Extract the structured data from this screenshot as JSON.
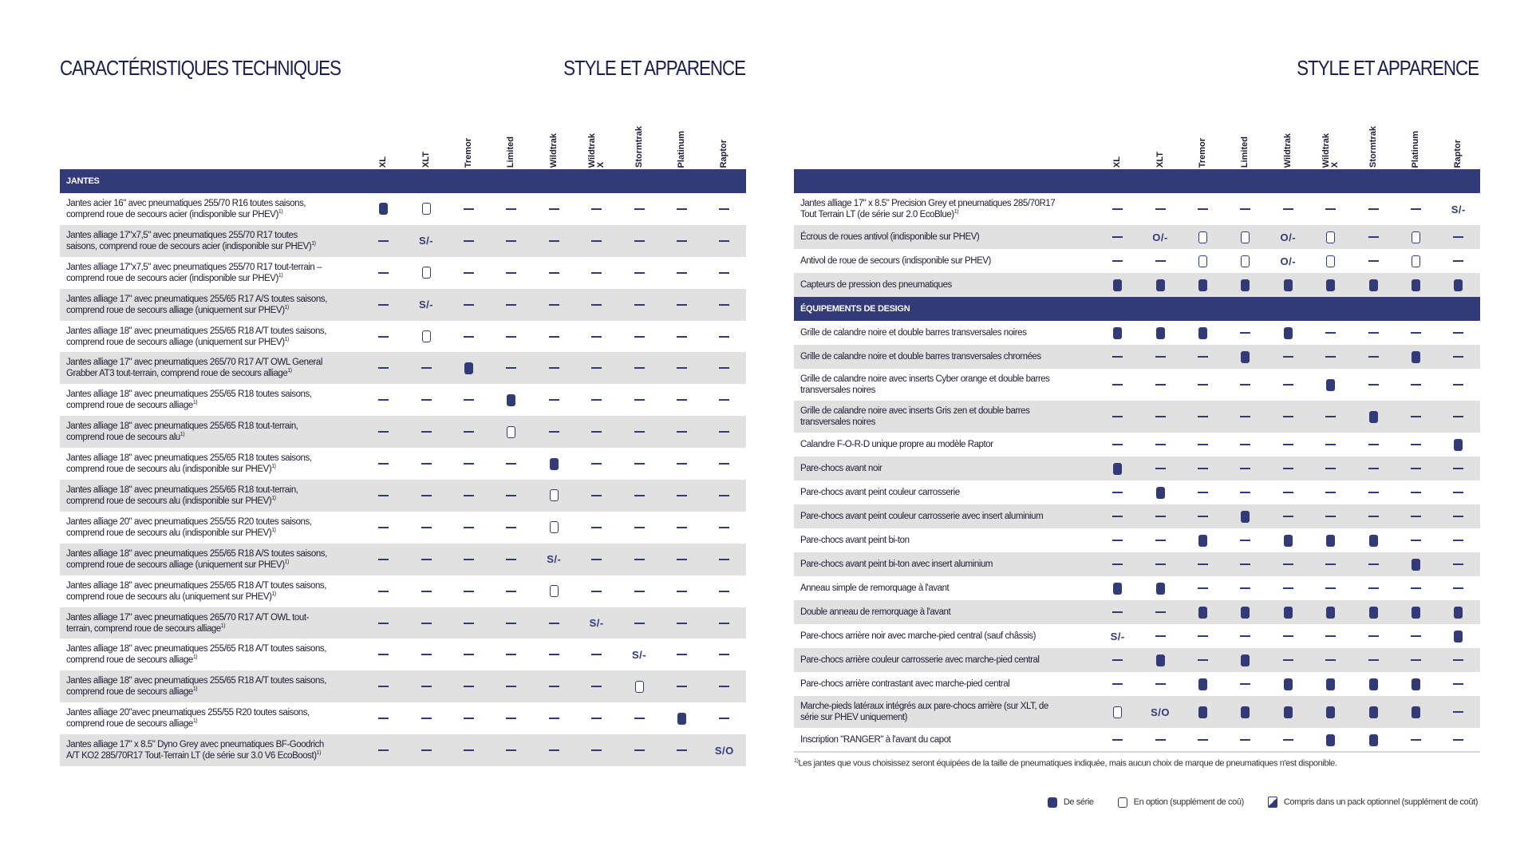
{
  "colors": {
    "navy": "#323a78",
    "row_grey": "#e1e1e2"
  },
  "titles": {
    "left": "CARACTÉRISTIQUES TECHNIQUES",
    "center": "STYLE ET APPARENCE",
    "right": "STYLE ET APPARENCE"
  },
  "columns": [
    [
      "XL"
    ],
    [
      "XLT"
    ],
    [
      "Tremor"
    ],
    [
      "Limited"
    ],
    [
      "Wildtrak"
    ],
    [
      "Wildtrak",
      "X"
    ],
    [
      "Stormtrak"
    ],
    [
      "Platinum"
    ],
    [
      "Raptor"
    ]
  ],
  "left_table": {
    "sections": [
      {
        "title": "JANTES",
        "rows": [
          {
            "label": "Jantes acier 16\" avec pneumatiques 255/70 R16 toutes saisons, comprend roue de secours acier (indisponible sur PHEV)",
            "sup": "1)",
            "cells": [
              "S",
              "O",
              "-",
              "-",
              "-",
              "-",
              "-",
              "-",
              "-"
            ]
          },
          {
            "label": "Jantes alliage 17\"x7,5\" avec pneumatiques 255/70 R17 toutes saisons, comprend roue de secours acier (indisponible sur PHEV)",
            "sup": "1)",
            "cells": [
              "-",
              "S/-",
              "-",
              "-",
              "-",
              "-",
              "-",
              "-",
              "-"
            ]
          },
          {
            "label": "Jantes alliage 17\"x7,5\" avec pneumatiques 255/70 R17 tout-terrain – comprend roue de secours acier (indisponible sur PHEV)",
            "sup": "1)",
            "cells": [
              "-",
              "O",
              "-",
              "-",
              "-",
              "-",
              "-",
              "-",
              "-"
            ]
          },
          {
            "label": "Jantes alliage 17\" avec pneumatiques 255/65 R17 A/S toutes saisons, comprend roue de secours alliage (uniquement sur PHEV)",
            "sup": "1)",
            "cells": [
              "-",
              "S/-",
              "-",
              "-",
              "-",
              "-",
              "-",
              "-",
              "-"
            ]
          },
          {
            "label": "Jantes alliage 18\" avec pneumatiques 255/65 R18 A/T toutes saisons, comprend roue de secours alliage (uniquement sur PHEV)",
            "sup": "1)",
            "cells": [
              "-",
              "O",
              "-",
              "-",
              "-",
              "-",
              "-",
              "-",
              "-"
            ]
          },
          {
            "label": "Jantes alliage 17\" avec pneumatiques 265/70 R17 A/T OWL General Grabber AT3 tout-terrain, comprend roue de secours alliage",
            "sup": "1)",
            "cells": [
              "-",
              "-",
              "S",
              "-",
              "-",
              "-",
              "-",
              "-",
              "-"
            ]
          },
          {
            "label": "Jantes alliage 18\" avec pneumatiques 255/65 R18 toutes saisons, comprend roue de secours alliage",
            "sup": "1)",
            "cells": [
              "-",
              "-",
              "-",
              "S",
              "-",
              "-",
              "-",
              "-",
              "-"
            ]
          },
          {
            "label": "Jantes alliage 18\" avec pneumatiques 255/65 R18 tout-terrain, comprend roue de secours alu",
            "sup": "1)",
            "cells": [
              "-",
              "-",
              "-",
              "O",
              "-",
              "-",
              "-",
              "-",
              "-"
            ]
          },
          {
            "label": "Jantes alliage 18\" avec pneumatiques 255/65 R18 toutes saisons, comprend roue de secours alu (indisponible sur PHEV)",
            "sup": "1)",
            "cells": [
              "-",
              "-",
              "-",
              "-",
              "S",
              "-",
              "-",
              "-",
              "-"
            ]
          },
          {
            "label": "Jantes alliage 18\" avec pneumatiques 255/65 R18 tout-terrain, comprend roue de secours alu (indisponible sur PHEV)",
            "sup": "1)",
            "cells": [
              "-",
              "-",
              "-",
              "-",
              "O",
              "-",
              "-",
              "-",
              "-"
            ]
          },
          {
            "label": "Jantes alliage 20\" avec pneumatiques 255/55 R20 toutes saisons, comprend roue de secours alu (indisponible sur PHEV)",
            "sup": "1)",
            "cells": [
              "-",
              "-",
              "-",
              "-",
              "O",
              "-",
              "-",
              "-",
              "-"
            ]
          },
          {
            "label": "Jantes alliage 18\" avec pneumatiques 255/65 R18 A/S toutes saisons, comprend roue de secours alliage (uniquement sur PHEV)",
            "sup": "1)",
            "cells": [
              "-",
              "-",
              "-",
              "-",
              "S/-",
              "-",
              "-",
              "-",
              "-"
            ]
          },
          {
            "label": "Jantes alliage 18\" avec pneumatiques 255/65 R18 A/T toutes saisons, comprend roue de secours alu (uniquement sur PHEV)",
            "sup": "1)",
            "cells": [
              "-",
              "-",
              "-",
              "-",
              "O",
              "-",
              "-",
              "-",
              "-"
            ]
          },
          {
            "label": "Jantes alliage 17\" avec pneumatiques 265/70 R17 A/T OWL tout-terrain, comprend roue de secours alliage",
            "sup": "1)",
            "cells": [
              "-",
              "-",
              "-",
              "-",
              "-",
              "S/-",
              "-",
              "-",
              "-"
            ]
          },
          {
            "label": "Jantes alliage 18\" avec pneumatiques 255/65 R18 A/T toutes saisons, comprend roue de secours alliage",
            "sup": "1)",
            "cells": [
              "-",
              "-",
              "-",
              "-",
              "-",
              "-",
              "S/-",
              "-",
              "-"
            ]
          },
          {
            "label": "Jantes alliage 18\" avec pneumatiques 255/65 R18 A/T toutes saisons, comprend roue de secours alliage",
            "sup": "1)",
            "cells": [
              "-",
              "-",
              "-",
              "-",
              "-",
              "-",
              "O",
              "-",
              "-"
            ]
          },
          {
            "label": "Jantes alliage 20\"avec pneumatiques 255/55 R20 toutes saisons, comprend roue de secours alliage",
            "sup": "1)",
            "cells": [
              "-",
              "-",
              "-",
              "-",
              "-",
              "-",
              "-",
              "S",
              "-"
            ]
          },
          {
            "label": "Jantes alliage 17\" x 8.5\" Dyno Grey avec pneumatiques BF-Goodrich A/T KO2 285/70R17 Tout-Terrain LT (de série sur 3.0 V6 EcoBoost)",
            "sup": "1)",
            "cells": [
              "-",
              "-",
              "-",
              "-",
              "-",
              "-",
              "-",
              "-",
              "S/O"
            ]
          }
        ]
      }
    ]
  },
  "right_table": {
    "sections": [
      {
        "title": "",
        "rows": [
          {
            "label": "Jantes alliage 17\" x 8.5\" Precision Grey et pneumatiques 285/70R17 Tout Terrain LT (de série sur 2.0 EcoBlue)",
            "sup": "1)",
            "lines": 2,
            "cells": [
              "-",
              "-",
              "-",
              "-",
              "-",
              "-",
              "-",
              "-",
              "S/-"
            ]
          },
          {
            "label": "Écrous de roues antivol (indisponible sur PHEV)",
            "cells": [
              "-",
              "O/-",
              "O",
              "O",
              "O/-",
              "O",
              "-",
              "O",
              "-"
            ]
          },
          {
            "label": "Antivol de roue de secours (indisponible sur PHEV)",
            "cells": [
              "-",
              "-",
              "O",
              "O",
              "O/-",
              "O",
              "-",
              "O",
              "-"
            ]
          },
          {
            "label": "Capteurs de pression des pneumatiques",
            "cells": [
              "S",
              "S",
              "S",
              "S",
              "S",
              "S",
              "S",
              "S",
              "S"
            ]
          }
        ]
      },
      {
        "title": "ÉQUIPEMENTS DE DESIGN",
        "rows": [
          {
            "label": "Grille de calandre noire et double barres transversales noires",
            "cells": [
              "S",
              "S",
              "S",
              "-",
              "S",
              "-",
              "-",
              "-",
              "-"
            ]
          },
          {
            "label": "Grille de calandre noire et double barres transversales chromées",
            "cells": [
              "-",
              "-",
              "-",
              "S",
              "-",
              "-",
              "-",
              "S",
              "-"
            ]
          },
          {
            "label": "Grille de calandre noire avec inserts Cyber orange et double barres transversales noires",
            "lines": 2,
            "cells": [
              "-",
              "-",
              "-",
              "-",
              "-",
              "S",
              "-",
              "-",
              "-"
            ]
          },
          {
            "label": "Grille de calandre noire avec inserts Gris zen et double barres transversales noires",
            "lines": 2,
            "cells": [
              "-",
              "-",
              "-",
              "-",
              "-",
              "-",
              "S",
              "-",
              "-"
            ]
          },
          {
            "label": "Calandre F-O-R-D unique propre au modèle Raptor",
            "cells": [
              "-",
              "-",
              "-",
              "-",
              "-",
              "-",
              "-",
              "-",
              "S"
            ]
          },
          {
            "label": "Pare-chocs avant noir",
            "cells": [
              "S",
              "-",
              "-",
              "-",
              "-",
              "-",
              "-",
              "-",
              "-"
            ]
          },
          {
            "label": "Pare-chocs avant peint couleur carrosserie",
            "cells": [
              "-",
              "S",
              "-",
              "-",
              "-",
              "-",
              "-",
              "-",
              "-"
            ]
          },
          {
            "label": "Pare-chocs avant peint couleur carrosserie avec insert aluminium",
            "cells": [
              "-",
              "-",
              "-",
              "S",
              "-",
              "-",
              "-",
              "-",
              "-"
            ]
          },
          {
            "label": "Pare-chocs avant peint bi-ton",
            "cells": [
              "-",
              "-",
              "S",
              "-",
              "S",
              "S",
              "S",
              "-",
              "-"
            ]
          },
          {
            "label": "Pare-chocs avant peint bi-ton avec insert aluminium",
            "cells": [
              "-",
              "-",
              "-",
              "-",
              "-",
              "-",
              "-",
              "S",
              "-"
            ]
          },
          {
            "label": "Anneau simple de remorquage à l'avant",
            "cells": [
              "S",
              "S",
              "-",
              "-",
              "-",
              "-",
              "-",
              "-",
              "-"
            ]
          },
          {
            "label": "Double anneau de remorquage à l'avant",
            "cells": [
              "-",
              "-",
              "S",
              "S",
              "S",
              "S",
              "S",
              "S",
              "S"
            ]
          },
          {
            "label": "Pare-chocs arrière noir avec marche-pied central (sauf châssis)",
            "cells": [
              "S/-",
              "-",
              "-",
              "-",
              "-",
              "-",
              "-",
              "-",
              "S"
            ]
          },
          {
            "label": "Pare-chocs arrière couleur carrosserie avec marche-pied central",
            "cells": [
              "-",
              "S",
              "-",
              "S",
              "-",
              "-",
              "-",
              "-",
              "-"
            ]
          },
          {
            "label": "Pare-chocs arrière contrastant avec marche-pied central",
            "cells": [
              "-",
              "-",
              "S",
              "-",
              "S",
              "S",
              "S",
              "S",
              "-"
            ]
          },
          {
            "label": "Marche-pieds latéraux intégrés aux pare-chocs arrière (sur XLT, de série sur PHEV uniquement)",
            "lines": 2,
            "cells": [
              "O",
              "S/O",
              "S",
              "S",
              "S",
              "S",
              "S",
              "S",
              "-"
            ]
          },
          {
            "label": "Inscription \"RANGER\" à l'avant du capot",
            "cells": [
              "-",
              "-",
              "-",
              "-",
              "-",
              "S",
              "S",
              "-",
              "-"
            ]
          }
        ]
      }
    ]
  },
  "footnote": {
    "sup": "1)",
    "text": "Les jantes que vous choisissez seront équipées de la taille de pneumatiques indiquée, mais aucun choix de marque de pneumatiques n'est disponible."
  },
  "legend": [
    {
      "icon": "standard-filled-square",
      "label": "De série"
    },
    {
      "icon": "option-outline-square",
      "label": "En option (supplément de coû)"
    },
    {
      "icon": "pack-half-filled-square",
      "label": "Compris dans un pack optionnel (supplément de coût)"
    }
  ]
}
